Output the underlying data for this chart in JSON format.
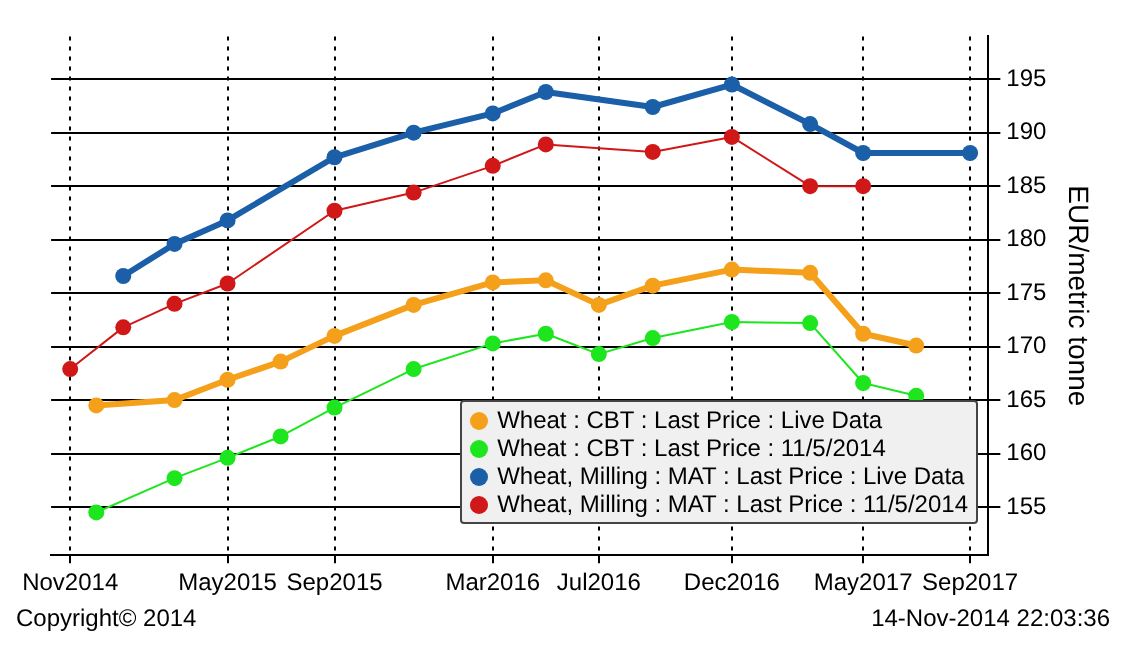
{
  "chart_data": {
    "type": "line",
    "ylabel": "EUR/metric tonne",
    "xlim": [
      "2014-10-10",
      "2017-09-22"
    ],
    "ylim": [
      150.5,
      199
    ],
    "xticks": [
      {
        "value": "2014-11",
        "label": "Nov2014"
      },
      {
        "value": "2015-05",
        "label": "May2015"
      },
      {
        "value": "2015-09",
        "label": "Sep2015"
      },
      {
        "value": "2016-03",
        "label": "Mar2016"
      },
      {
        "value": "2016-07",
        "label": "Jul2016"
      },
      {
        "value": "2016-12",
        "label": "Dec2016"
      },
      {
        "value": "2017-05",
        "label": "May2017"
      },
      {
        "value": "2017-09",
        "label": "Sep2017"
      }
    ],
    "yticks": [
      155,
      160,
      165,
      170,
      175,
      180,
      185,
      190,
      195
    ],
    "grid": true,
    "legend": "bottom right",
    "marker": "circle",
    "line_style": "solid",
    "annotations": [
      "Copyright© 2014",
      "14-Nov-2014 22:03:36"
    ],
    "series": [
      {
        "name": "Wheat : CBT : Last Price : Live Data",
        "color": "#f5a01a",
        "x": [
          "2014-12",
          "2015-03",
          "2015-05",
          "2015-07",
          "2015-09",
          "2015-12",
          "2016-03",
          "2016-05",
          "2016-07",
          "2016-09",
          "2016-12",
          "2017-03",
          "2017-05",
          "2017-07"
        ],
        "values": [
          164.5,
          165.0,
          166.9,
          168.6,
          171.0,
          173.9,
          176.0,
          176.2,
          173.9,
          175.7,
          177.2,
          176.9,
          171.2,
          170.1
        ]
      },
      {
        "name": "Wheat : CBT : Last Price : 11/5/2014",
        "color": "#1ee61e",
        "x": [
          "2014-12",
          "2015-03",
          "2015-05",
          "2015-07",
          "2015-09",
          "2015-12",
          "2016-03",
          "2016-05",
          "2016-07",
          "2016-09",
          "2016-12",
          "2017-03",
          "2017-05",
          "2017-07"
        ],
        "values": [
          154.5,
          157.7,
          159.6,
          161.6,
          164.3,
          167.9,
          170.3,
          171.2,
          169.3,
          170.8,
          172.3,
          172.2,
          166.6,
          165.4
        ]
      },
      {
        "name": "Wheat, Milling : MAT : Last Price : Live Data",
        "color": "#1a5fa8",
        "x": [
          "2015-01",
          "2015-03",
          "2015-05",
          "2015-09",
          "2015-12",
          "2016-03",
          "2016-05",
          "2016-09",
          "2016-12",
          "2017-03",
          "2017-05",
          "2017-09"
        ],
        "values": [
          176.6,
          179.6,
          181.8,
          187.7,
          190.0,
          191.8,
          193.8,
          192.4,
          194.5,
          190.8,
          188.1,
          188.1
        ]
      },
      {
        "name": "Wheat, Milling : MAT : Last Price : 11/5/2014",
        "color": "#d01818",
        "x": [
          "2014-11",
          "2015-01",
          "2015-03",
          "2015-05",
          "2015-09",
          "2015-12",
          "2016-03",
          "2016-05",
          "2016-09",
          "2016-12",
          "2017-03",
          "2017-05"
        ],
        "values": [
          167.9,
          171.8,
          174.0,
          175.9,
          182.7,
          184.4,
          186.9,
          188.9,
          188.2,
          189.6,
          185.0,
          185.0
        ]
      }
    ]
  }
}
